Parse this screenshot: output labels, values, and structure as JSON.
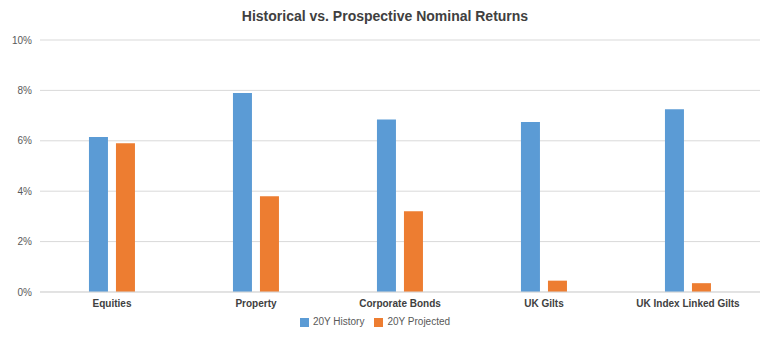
{
  "chart_data": {
    "type": "bar",
    "title": "Historical vs. Prospective Nominal Returns",
    "categories": [
      "Equities",
      "Property",
      "Corporate Bonds",
      "UK Gilts",
      "UK Index Linked Gilts"
    ],
    "series": [
      {
        "name": "20Y History",
        "color": "#5b9bd5",
        "values": [
          6.15,
          7.9,
          6.85,
          6.75,
          7.25
        ]
      },
      {
        "name": "20Y Projected",
        "color": "#ed7d31",
        "values": [
          5.9,
          3.8,
          3.2,
          0.45,
          0.35
        ]
      }
    ],
    "ylim": [
      0,
      10
    ],
    "yticks": [
      {
        "value": 0,
        "label": "0%"
      },
      {
        "value": 2,
        "label": "2%"
      },
      {
        "value": 4,
        "label": "4%"
      },
      {
        "value": 6,
        "label": "6%"
      },
      {
        "value": 8,
        "label": "8%"
      },
      {
        "value": 10,
        "label": "10%"
      }
    ],
    "grid": true,
    "legend": "bottom"
  }
}
